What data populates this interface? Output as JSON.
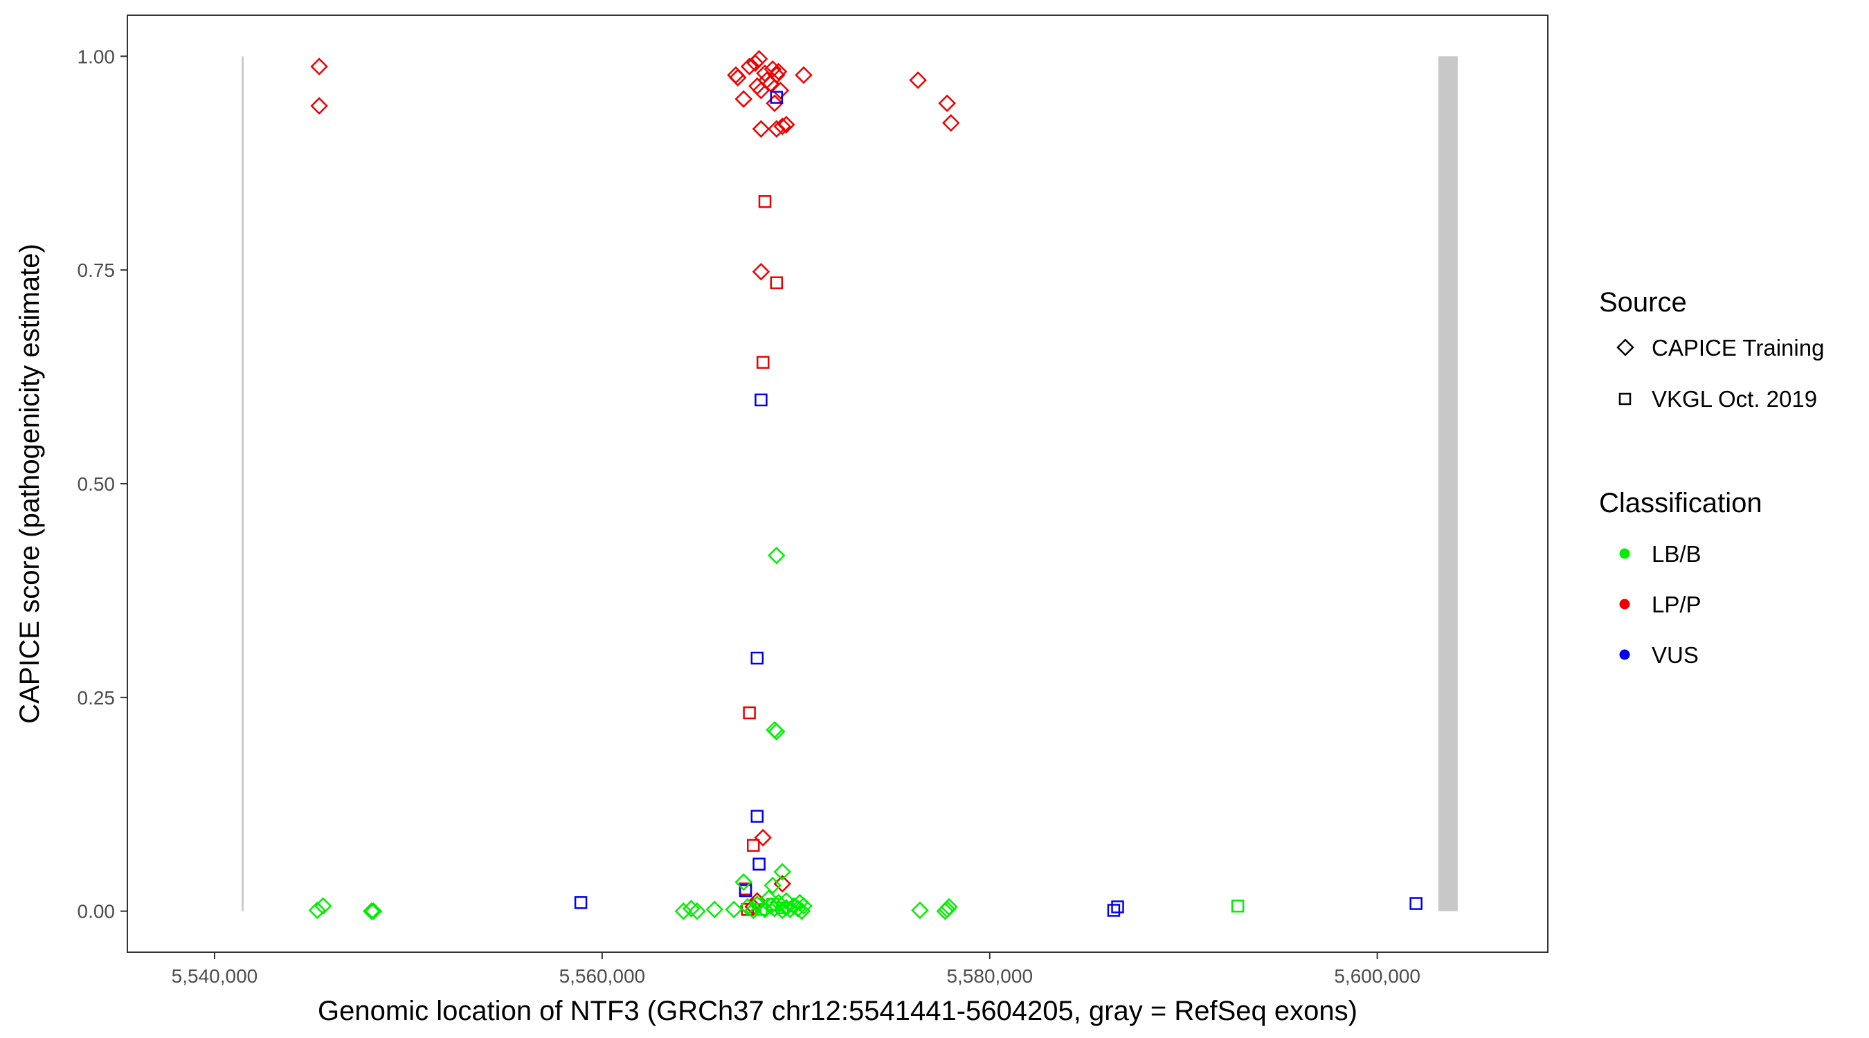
{
  "chart_data": {
    "type": "scatter",
    "title": "",
    "xlabel": "Genomic location of NTF3 (GRCh37 chr12:5541441-5604205, gray = RefSeq exons)",
    "ylabel": "CAPICE score (pathogenicity estimate)",
    "xlim": [
      5535500,
      5608800
    ],
    "ylim": [
      -0.048,
      1.048
    ],
    "x_ticks": [
      5540000,
      5560000,
      5580000,
      5600000
    ],
    "x_tick_labels": [
      "5,540,000",
      "5,560,000",
      "5,580,000",
      "5,600,000"
    ],
    "y_ticks": [
      0,
      0.25,
      0.5,
      0.75,
      1.0
    ],
    "y_tick_labels": [
      "0.00",
      "0.25",
      "0.50",
      "0.75",
      "1.00"
    ],
    "grid": false,
    "exons": [
      {
        "start": 5541400,
        "end": 5541500
      },
      {
        "start": 5603150,
        "end": 5604150
      }
    ],
    "exon_color": "#c8c8c8",
    "classification_colors": {
      "LB/B": "#00ee00",
      "LP/P": "#ee0000",
      "VUS": "#0000ee"
    },
    "legend": {
      "position": "right",
      "source_title": "Source",
      "source_items": [
        {
          "label": "CAPICE Training",
          "shape": "diamond"
        },
        {
          "label": "VKGL Oct. 2019",
          "shape": "square"
        }
      ],
      "classification_title": "Classification",
      "classification_items": [
        {
          "label": "LB/B",
          "color": "#00ee00"
        },
        {
          "label": "LP/P",
          "color": "#ee0000"
        },
        {
          "label": "VUS",
          "color": "#0000ee"
        }
      ]
    },
    "series": [
      {
        "source": "CAPICE Training",
        "classification": "LP/P",
        "points": [
          [
            5545400,
            0.988
          ],
          [
            5545400,
            0.942
          ],
          [
            5566900,
            0.978
          ],
          [
            5567000,
            0.975
          ],
          [
            5567300,
            0.95
          ],
          [
            5567600,
            0.988
          ],
          [
            5567900,
            0.992
          ],
          [
            5568100,
            0.997
          ],
          [
            5568000,
            0.965
          ],
          [
            5568200,
            0.96
          ],
          [
            5568400,
            0.98
          ],
          [
            5568500,
            0.972
          ],
          [
            5568800,
            0.985
          ],
          [
            5568700,
            0.968
          ],
          [
            5568900,
            0.945
          ],
          [
            5569000,
            0.978
          ],
          [
            5569100,
            0.982
          ],
          [
            5569200,
            0.96
          ],
          [
            5568200,
            0.915
          ],
          [
            5569000,
            0.915
          ],
          [
            5569300,
            0.918
          ],
          [
            5569500,
            0.92
          ],
          [
            5570400,
            0.978
          ],
          [
            5576300,
            0.972
          ],
          [
            5577800,
            0.945
          ],
          [
            5578000,
            0.922
          ],
          [
            5568200,
            0.748
          ],
          [
            5568300,
            0.086
          ],
          [
            5568000,
            0.012
          ],
          [
            5567800,
            0.005
          ],
          [
            5569300,
            0.032
          ]
        ]
      },
      {
        "source": "VKGL Oct. 2019",
        "classification": "LP/P",
        "points": [
          [
            5568400,
            0.83
          ],
          [
            5569000,
            0.735
          ],
          [
            5568300,
            0.642
          ],
          [
            5567600,
            0.232
          ],
          [
            5567800,
            0.077
          ],
          [
            5567500,
            0.002
          ],
          [
            5567400,
            0.026
          ]
        ]
      },
      {
        "source": "VKGL Oct. 2019",
        "classification": "VUS",
        "points": [
          [
            5569000,
            0.952
          ],
          [
            5568200,
            0.598
          ],
          [
            5568000,
            0.296
          ],
          [
            5568000,
            0.111
          ],
          [
            5568100,
            0.055
          ],
          [
            5567400,
            0.024
          ],
          [
            5558900,
            0.01
          ],
          [
            5586400,
            0.001
          ],
          [
            5586600,
            0.005
          ],
          [
            5602000,
            0.009
          ]
        ]
      },
      {
        "source": "CAPICE Training",
        "classification": "LB/B",
        "points": [
          [
            5569000,
            0.416
          ],
          [
            5568900,
            0.212
          ],
          [
            5569000,
            0.21
          ],
          [
            5569300,
            0.046
          ],
          [
            5567300,
            0.034
          ],
          [
            5568800,
            0.03
          ],
          [
            5568600,
            0.015
          ],
          [
            5569500,
            0.012
          ],
          [
            5545300,
            0.001
          ],
          [
            5545600,
            0.006
          ],
          [
            5548100,
            0.0
          ],
          [
            5548200,
            0.0
          ],
          [
            5564200,
            0.0
          ],
          [
            5564600,
            0.003
          ],
          [
            5564900,
            0.0
          ],
          [
            5565800,
            0.002
          ],
          [
            5566800,
            0.002
          ],
          [
            5567500,
            0.005
          ],
          [
            5567800,
            0.001
          ],
          [
            5568000,
            0.008
          ],
          [
            5568400,
            0.002
          ],
          [
            5568700,
            0.006
          ],
          [
            5568900,
            0.003
          ],
          [
            5569100,
            0.01
          ],
          [
            5569300,
            0.001
          ],
          [
            5569500,
            0.004
          ],
          [
            5569700,
            0.002
          ],
          [
            5569900,
            0.006
          ],
          [
            5570100,
            0.003
          ],
          [
            5570200,
            0.01
          ],
          [
            5570300,
            0.0
          ],
          [
            5570400,
            0.006
          ],
          [
            5576400,
            0.001
          ],
          [
            5577700,
            0.0
          ],
          [
            5577900,
            0.005
          ],
          [
            5577800,
            0.002
          ]
        ]
      },
      {
        "source": "VKGL Oct. 2019",
        "classification": "LB/B",
        "points": [
          [
            5568200,
            0.002
          ],
          [
            5568800,
            0.008
          ],
          [
            5569300,
            0.004
          ],
          [
            5592800,
            0.006
          ]
        ]
      }
    ]
  }
}
